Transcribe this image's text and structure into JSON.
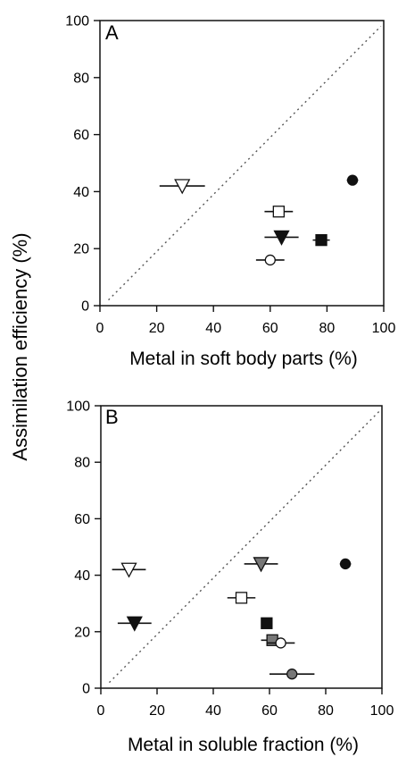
{
  "figure": {
    "shared_ylabel": "Assimilation efficiency (%)"
  },
  "chart_data": [
    {
      "type": "scatter",
      "panel_label": "A",
      "xlabel": "Metal in soft body parts (%)",
      "ylabel": "Assimilation efficiency (%)",
      "xlim": [
        0,
        100
      ],
      "ylim": [
        0,
        100
      ],
      "x_ticks": [
        "0",
        "20",
        "40",
        "60",
        "80",
        "100"
      ],
      "y_ticks": [
        "0",
        "20",
        "40",
        "60",
        "80",
        "100"
      ],
      "grid": false,
      "reference_line": {
        "style": "dotted",
        "from": [
          3,
          2
        ],
        "to": [
          99,
          98
        ]
      },
      "points": [
        {
          "x": 29,
          "y": 42,
          "x_err": 8,
          "marker": "triangle-down",
          "fill": "#ffffff"
        },
        {
          "x": 89,
          "y": 44,
          "x_err": 2,
          "marker": "circle",
          "fill": "#111111"
        },
        {
          "x": 63,
          "y": 33,
          "x_err": 5,
          "marker": "square",
          "fill": "#ffffff"
        },
        {
          "x": 64,
          "y": 24,
          "x_err": 6,
          "marker": "triangle-down",
          "fill": "#111111"
        },
        {
          "x": 78,
          "y": 23,
          "x_err": 3,
          "marker": "square",
          "fill": "#111111"
        },
        {
          "x": 60,
          "y": 16,
          "x_err": 5,
          "marker": "circle",
          "fill": "#ffffff"
        }
      ]
    },
    {
      "type": "scatter",
      "panel_label": "B",
      "xlabel": "Metal in soluble fraction (%)",
      "ylabel": "Assimilation efficiency (%)",
      "xlim": [
        0,
        100
      ],
      "ylim": [
        0,
        100
      ],
      "x_ticks": [
        "0",
        "20",
        "40",
        "60",
        "80",
        "100"
      ],
      "y_ticks": [
        "0",
        "20",
        "40",
        "60",
        "80",
        "100"
      ],
      "grid": false,
      "reference_line": {
        "style": "dotted",
        "from": [
          3,
          2
        ],
        "to": [
          99,
          98
        ]
      },
      "points": [
        {
          "x": 10,
          "y": 42,
          "x_err": 6,
          "marker": "triangle-down",
          "fill": "#ffffff"
        },
        {
          "x": 57,
          "y": 44,
          "x_err": 6,
          "marker": "triangle-down",
          "fill": "#777777"
        },
        {
          "x": 87,
          "y": 44,
          "x_err": 2,
          "marker": "circle",
          "fill": "#111111"
        },
        {
          "x": 50,
          "y": 32,
          "x_err": 5,
          "marker": "square",
          "fill": "#ffffff"
        },
        {
          "x": 12,
          "y": 23,
          "x_err": 6,
          "marker": "triangle-down",
          "fill": "#111111"
        },
        {
          "x": 59,
          "y": 23,
          "x_err": 0,
          "marker": "square",
          "fill": "#111111"
        },
        {
          "x": 61,
          "y": 17,
          "x_err": 4,
          "marker": "square",
          "fill": "#777777"
        },
        {
          "x": 64,
          "y": 16,
          "x_err": 5,
          "marker": "circle",
          "fill": "#ffffff"
        },
        {
          "x": 68,
          "y": 5,
          "x_err": 8,
          "marker": "circle",
          "fill": "#777777"
        }
      ]
    }
  ]
}
